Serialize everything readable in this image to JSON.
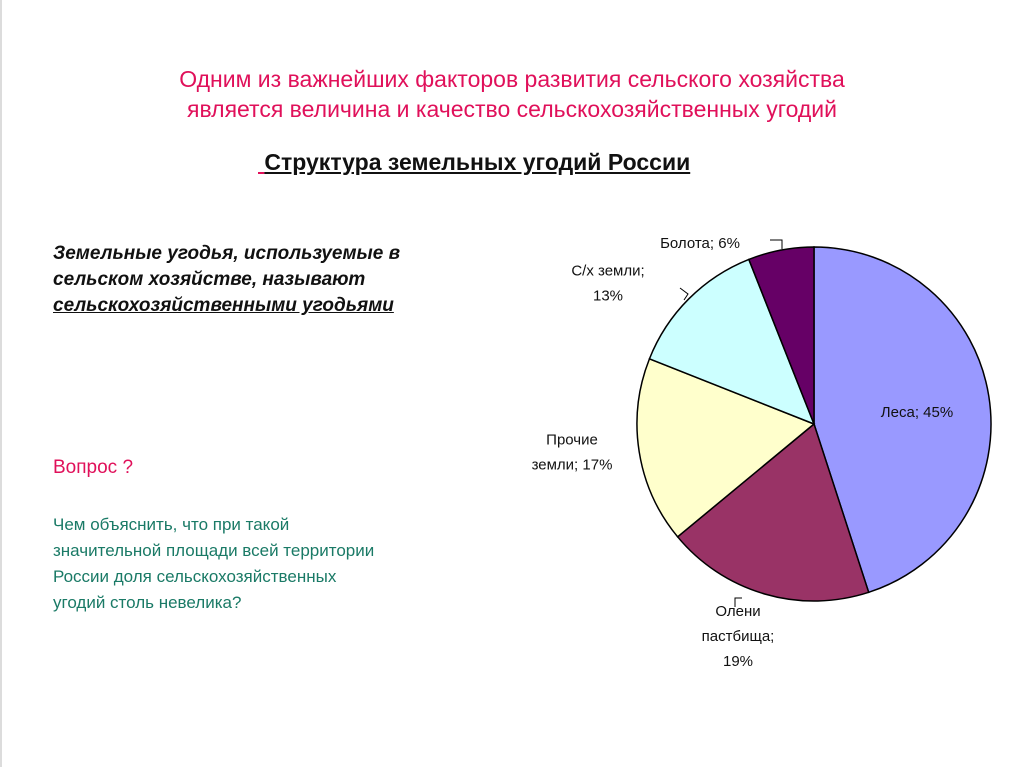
{
  "headline": {
    "line1": "Одним из важнейших факторов развития сельского хозяйства",
    "line2": "является величина и качество сельскохозяйственных угодий"
  },
  "definition": {
    "part1": "Земельные угодья, используемые в сельском хозяйстве, называют ",
    "term": "сельскохозяйственными угодьями"
  },
  "question": {
    "title": "Вопрос ?",
    "text": "Чем объяснить, что при такой значительной площади всей территории России доля сельскохозяйственных угодий столь невелика?"
  },
  "colors": {
    "title": "#e0105a",
    "question_text": "#1a7a66"
  },
  "chart_data": {
    "type": "pie",
    "title": "Структура земельных угодий России",
    "slices": [
      {
        "name": "Леса",
        "value": 45,
        "label_lines": [
          "Леса; 45%"
        ],
        "color": "#9999ff"
      },
      {
        "name": "Олени пастбища",
        "value": 19,
        "label_lines": [
          "Олени",
          "пастбища;",
          "19%"
        ],
        "color": "#993366"
      },
      {
        "name": "Прочие земли",
        "value": 17,
        "label_lines": [
          "Прочие",
          "земли; 17%"
        ],
        "color": "#ffffcc"
      },
      {
        "name": "С/х земли",
        "value": 13,
        "label_lines": [
          "С/х земли;",
          "13%"
        ],
        "color": "#ccffff"
      },
      {
        "name": "Болота",
        "value": 6,
        "label_lines": [
          "Болота; 6%"
        ],
        "color": "#660066"
      }
    ]
  }
}
